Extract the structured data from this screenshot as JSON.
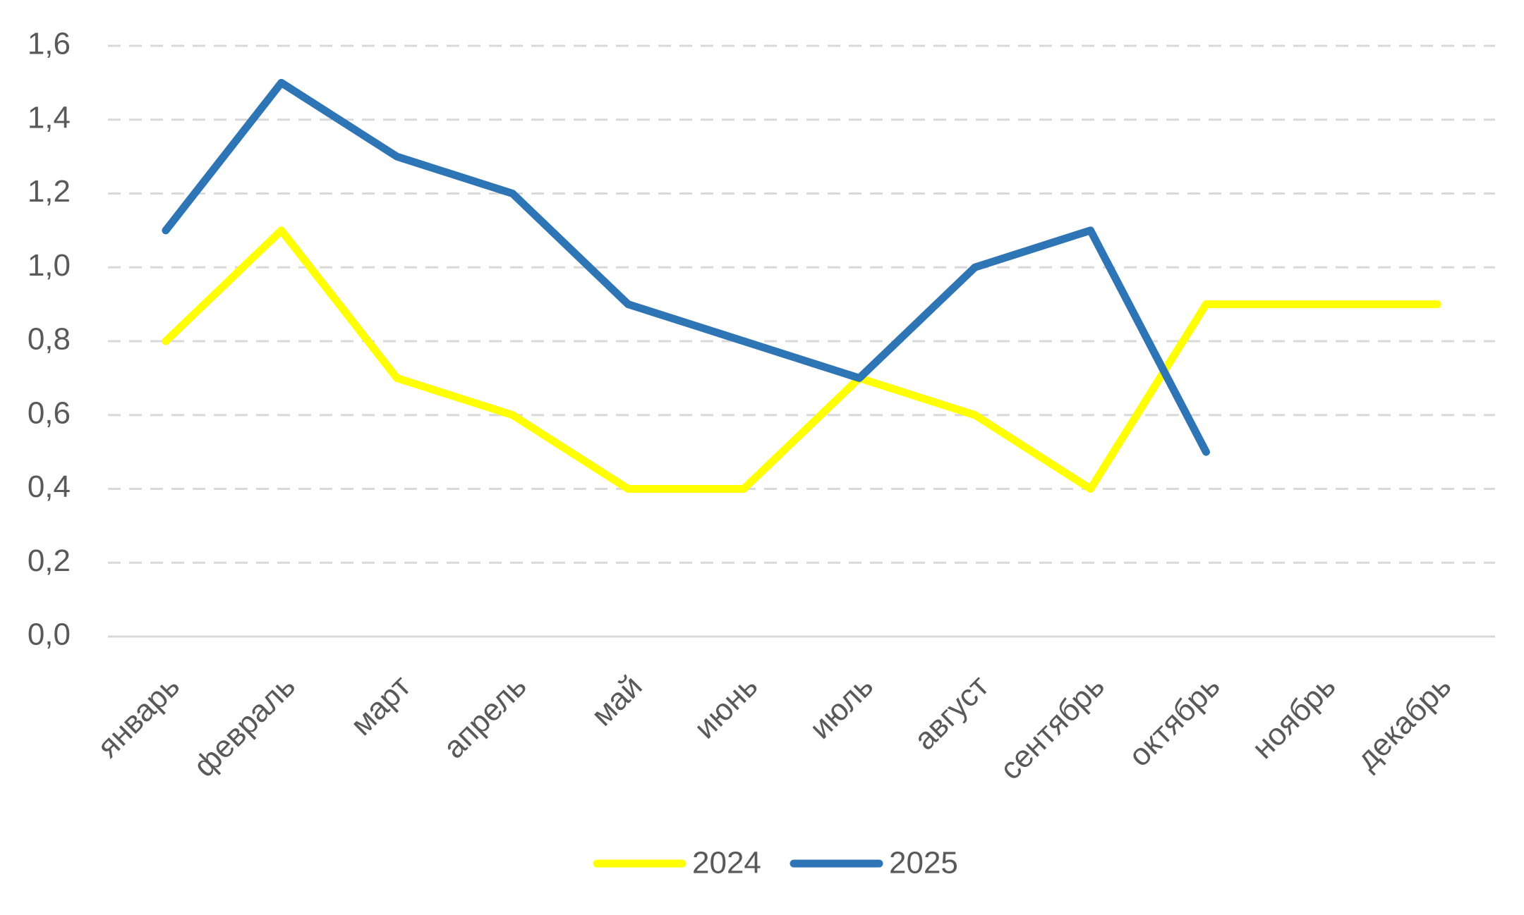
{
  "chart_data": {
    "type": "line",
    "categories": [
      "январь",
      "февраль",
      "март",
      "апрель",
      "май",
      "июнь",
      "июль",
      "август",
      "сентябрь",
      "октябрь",
      "ноябрь",
      "декабрь"
    ],
    "series": [
      {
        "name": "2024",
        "color": "#ffff00",
        "values": [
          0.8,
          1.1,
          0.7,
          0.6,
          0.4,
          0.4,
          0.7,
          0.6,
          0.4,
          0.9,
          0.9,
          0.9
        ]
      },
      {
        "name": "2025",
        "color": "#2e75b6",
        "values": [
          1.1,
          1.5,
          1.3,
          1.2,
          0.9,
          0.8,
          0.7,
          1.0,
          1.1,
          0.5,
          null,
          null
        ]
      }
    ],
    "ylim": [
      0,
      1.6
    ],
    "yticks": [
      {
        "value": 0,
        "label": "0,0"
      },
      {
        "value": 0.2,
        "label": "0,2"
      },
      {
        "value": 0.4,
        "label": "0,4"
      },
      {
        "value": 0.6,
        "label": "0,6"
      },
      {
        "value": 0.8,
        "label": "0,8"
      },
      {
        "value": 1.0,
        "label": "1,0"
      },
      {
        "value": 1.2,
        "label": "1,2"
      },
      {
        "value": 1.4,
        "label": "1,4"
      },
      {
        "value": 1.6,
        "label": "1,6"
      }
    ],
    "grid": true,
    "legend": "bottom"
  }
}
